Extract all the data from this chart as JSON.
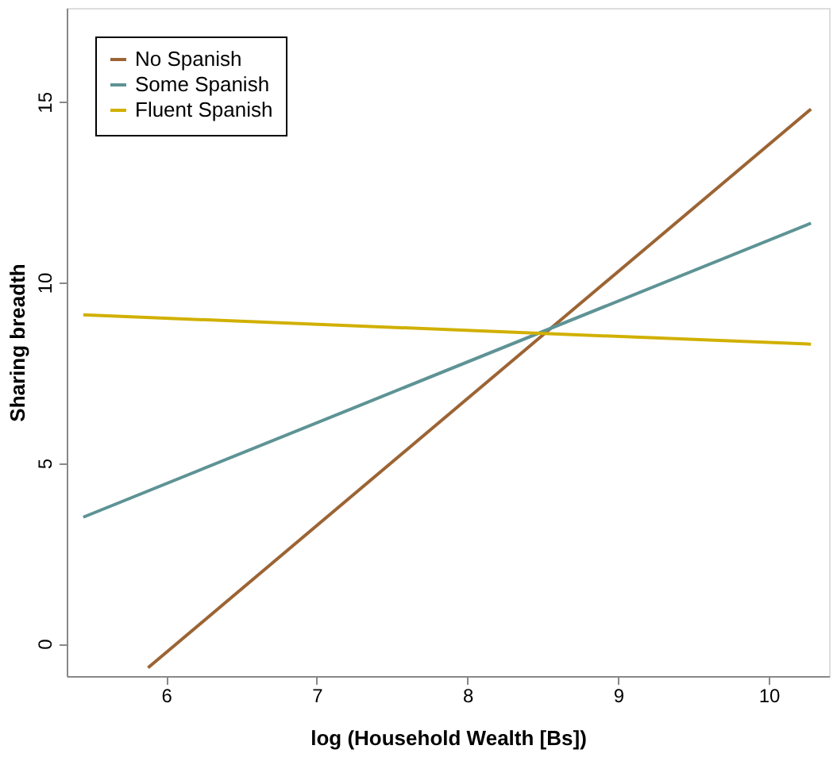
{
  "chart_data": {
    "type": "line",
    "xlabel": "log (Household Wealth [Bs])",
    "ylabel": "Sharing breadth",
    "xlim": [
      5.34,
      10.4
    ],
    "ylim": [
      -0.9,
      17.6
    ],
    "xticks": [
      6,
      7,
      8,
      9,
      10
    ],
    "yticks": [
      0,
      5,
      10,
      15
    ],
    "grid": false,
    "legend": "top left",
    "marker": "none",
    "line_style": "solid",
    "series": [
      {
        "name": "No Spanish",
        "color": "#9c6434",
        "x": [
          5.88,
          10.28
        ],
        "values": [
          -0.67,
          14.8
        ]
      },
      {
        "name": "Some Spanish",
        "color": "#5e9395",
        "x": [
          5.45,
          10.28
        ],
        "values": [
          3.5,
          11.64
        ]
      },
      {
        "name": "Fluent Spanish",
        "color": "#d1b000",
        "x": [
          5.45,
          10.28
        ],
        "values": [
          9.1,
          8.29
        ]
      }
    ]
  }
}
